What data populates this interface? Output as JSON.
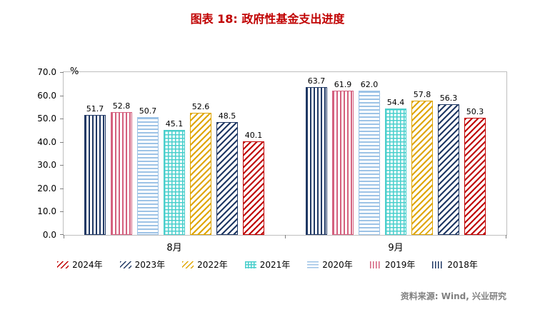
{
  "title": "图表 18: 政府性基金支出进度",
  "source": "资料来源: Wind, 兴业研究",
  "colors": {
    "title": "#c00000",
    "source": "#808080",
    "axis": "#808080",
    "plot_border": "#bfbfbf",
    "label_text": "#000000"
  },
  "chart_data": {
    "type": "bar",
    "title": "图表 18: 政府性基金支出进度",
    "ylabel": "%",
    "ylim": [
      0,
      70
    ],
    "yticks": [
      "70.0",
      "60.0",
      "50.0",
      "40.0",
      "30.0",
      "20.0",
      "10.0",
      "0.0"
    ],
    "grid": false,
    "categories": [
      "8月",
      "9月"
    ],
    "series": [
      {
        "name": "2018年",
        "values": [
          51.7,
          63.7
        ],
        "color": "#1f3864",
        "pattern": "vertical"
      },
      {
        "name": "2019年",
        "values": [
          52.8,
          61.9
        ],
        "color": "#d4607e",
        "pattern": "vertical"
      },
      {
        "name": "2020年",
        "values": [
          50.7,
          62.0
        ],
        "color": "#9dc3e6",
        "pattern": "horizontal"
      },
      {
        "name": "2021年",
        "values": [
          45.1,
          54.4
        ],
        "color": "#49cfcc",
        "pattern": "grid"
      },
      {
        "name": "2022年",
        "values": [
          52.6,
          57.8
        ],
        "color": "#dfa500",
        "pattern": "diag"
      },
      {
        "name": "2023年",
        "values": [
          48.5,
          56.3
        ],
        "color": "#1f3864",
        "pattern": "diag"
      },
      {
        "name": "2024年",
        "values": [
          40.1,
          50.3
        ],
        "color": "#c00000",
        "pattern": "diag"
      }
    ],
    "legend_order": [
      "2024年",
      "2023年",
      "2022年",
      "2021年",
      "2020年",
      "2019年",
      "2018年"
    ],
    "legend_position": "bottom"
  }
}
